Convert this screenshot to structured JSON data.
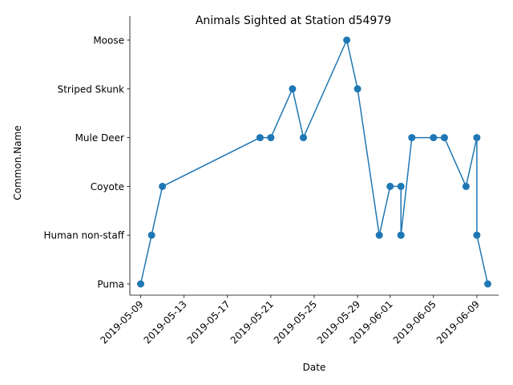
{
  "chart_data": {
    "type": "line",
    "title": "Animals Sighted at Station d54979",
    "xlabel": "Date",
    "ylabel": "Common.Name",
    "x_scale": "date",
    "xlim": [
      "2019-05-08",
      "2019-06-11"
    ],
    "categories_y": [
      "Puma",
      "Human non-staff",
      "Coyote",
      "Mule Deer",
      "Striped Skunk",
      "Moose"
    ],
    "x_ticks": [
      "2019-05-09",
      "2019-05-13",
      "2019-05-17",
      "2019-05-21",
      "2019-05-25",
      "2019-05-29",
      "2019-06-01",
      "2019-06-05",
      "2019-06-09"
    ],
    "series": [
      {
        "color": "#1f77b4",
        "marker": "circle",
        "points": [
          {
            "x": "2019-05-09",
            "y": "Puma"
          },
          {
            "x": "2019-05-10",
            "y": "Human non-staff"
          },
          {
            "x": "2019-05-11",
            "y": "Coyote"
          },
          {
            "x": "2019-05-20",
            "y": "Mule Deer"
          },
          {
            "x": "2019-05-21",
            "y": "Mule Deer"
          },
          {
            "x": "2019-05-23",
            "y": "Striped Skunk"
          },
          {
            "x": "2019-05-24",
            "y": "Mule Deer"
          },
          {
            "x": "2019-05-28",
            "y": "Moose"
          },
          {
            "x": "2019-05-29",
            "y": "Striped Skunk"
          },
          {
            "x": "2019-05-31",
            "y": "Human non-staff"
          },
          {
            "x": "2019-06-01",
            "y": "Coyote"
          },
          {
            "x": "2019-06-02",
            "y": "Coyote"
          },
          {
            "x": "2019-06-02",
            "y": "Human non-staff"
          },
          {
            "x": "2019-06-02",
            "y": "Human non-staff"
          },
          {
            "x": "2019-06-03",
            "y": "Mule Deer"
          },
          {
            "x": "2019-06-05",
            "y": "Mule Deer"
          },
          {
            "x": "2019-06-06",
            "y": "Mule Deer"
          },
          {
            "x": "2019-06-08",
            "y": "Coyote"
          },
          {
            "x": "2019-06-09",
            "y": "Mule Deer"
          },
          {
            "x": "2019-06-09",
            "y": "Human non-staff"
          },
          {
            "x": "2019-06-10",
            "y": "Puma"
          }
        ]
      }
    ],
    "grid": false,
    "legend": "none"
  }
}
